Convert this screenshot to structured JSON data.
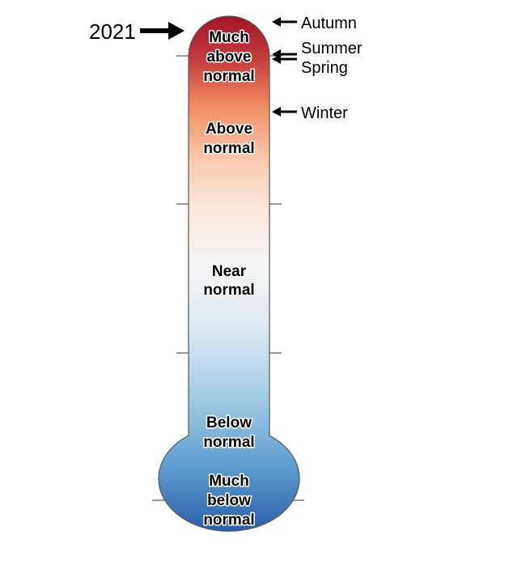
{
  "year_label": "2021",
  "levels": [
    {
      "lines": [
        "Much",
        "above",
        "normal"
      ]
    },
    {
      "lines": [
        "Above",
        "normal"
      ]
    },
    {
      "lines": [
        "Near",
        "normal"
      ]
    },
    {
      "lines": [
        "Below",
        "normal"
      ]
    },
    {
      "lines": [
        "Much",
        "below",
        "normal"
      ]
    }
  ],
  "season_markers": {
    "autumn": "Autumn",
    "summer": "Summer",
    "spring": "Spring",
    "winter": "Winter"
  },
  "colors": {
    "much_above": "#a8162c",
    "above": "#f08c62",
    "near": "#f4f4f4",
    "below": "#8fc0df",
    "much_below": "#2a60a8"
  }
}
